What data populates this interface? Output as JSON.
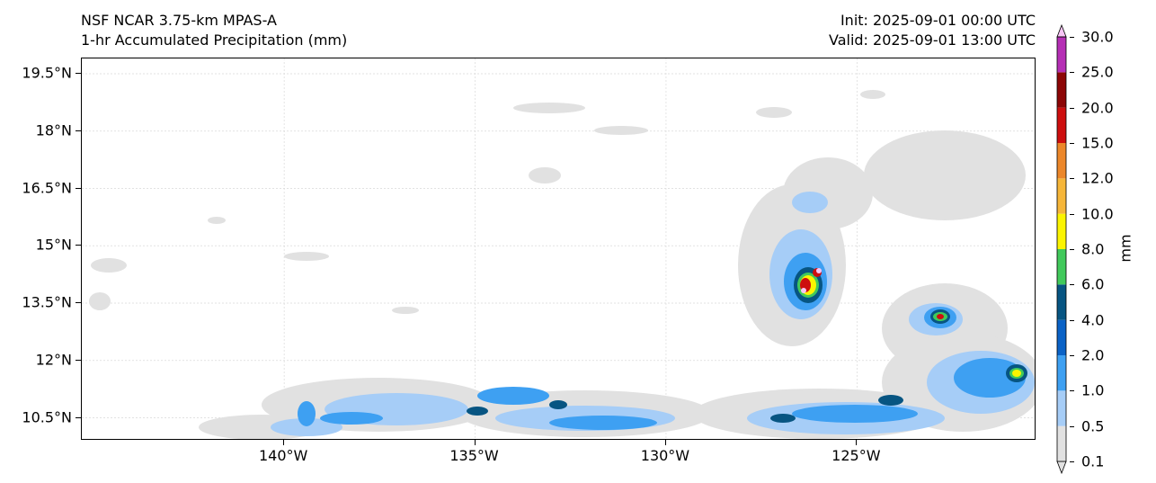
{
  "title": {
    "model": "NSF NCAR 3.75-km MPAS-A",
    "field": "1-hr Accumulated Precipitation (mm)",
    "init": "Init: 2025-09-01 00:00 UTC",
    "valid": "Valid: 2025-09-01 13:00 UTC"
  },
  "map": {
    "lon_range": [
      -145.3,
      -120.3
    ],
    "lat_range": [
      9.9,
      19.9
    ],
    "lat_ticks": [
      {
        "value": 19.5,
        "label": "19.5°N"
      },
      {
        "value": 18.0,
        "label": "18°N"
      },
      {
        "value": 16.5,
        "label": "16.5°N"
      },
      {
        "value": 15.0,
        "label": "15°N"
      },
      {
        "value": 13.5,
        "label": "13.5°N"
      },
      {
        "value": 12.0,
        "label": "12°N"
      },
      {
        "value": 10.5,
        "label": "10.5°N"
      }
    ],
    "lon_ticks": [
      {
        "value": -140,
        "label": "140°W"
      },
      {
        "value": -135,
        "label": "135°W"
      },
      {
        "value": -130,
        "label": "130°W"
      },
      {
        "value": -125,
        "label": "125°W"
      }
    ],
    "grid": true
  },
  "colorbar": {
    "unit": "mm",
    "levels": [
      {
        "value": 0.1,
        "label": "0.1",
        "color": "#e1e1e1"
      },
      {
        "value": 0.5,
        "label": "0.5",
        "color": "#a6cdf7"
      },
      {
        "value": 1.0,
        "label": "1.0",
        "color": "#3ea0f2"
      },
      {
        "value": 2.0,
        "label": "2.0",
        "color": "#0a62c6"
      },
      {
        "value": 4.0,
        "label": "4.0",
        "color": "#075582"
      },
      {
        "value": 6.0,
        "label": "6.0",
        "color": "#41c95b"
      },
      {
        "value": 8.0,
        "label": "8.0",
        "color": "#fbf401"
      },
      {
        "value": 10.0,
        "label": "10.0",
        "color": "#f6b639"
      },
      {
        "value": 12.0,
        "label": "12.0",
        "color": "#ec872a"
      },
      {
        "value": 15.0,
        "label": "15.0",
        "color": "#cd0e0e"
      },
      {
        "value": 20.0,
        "label": "20.0",
        "color": "#8c0606"
      },
      {
        "value": 25.0,
        "label": "25.0",
        "color": "#b52fb5"
      },
      {
        "value": 30.0,
        "label": "30.0",
        "color": "#f7c5f5"
      }
    ]
  }
}
